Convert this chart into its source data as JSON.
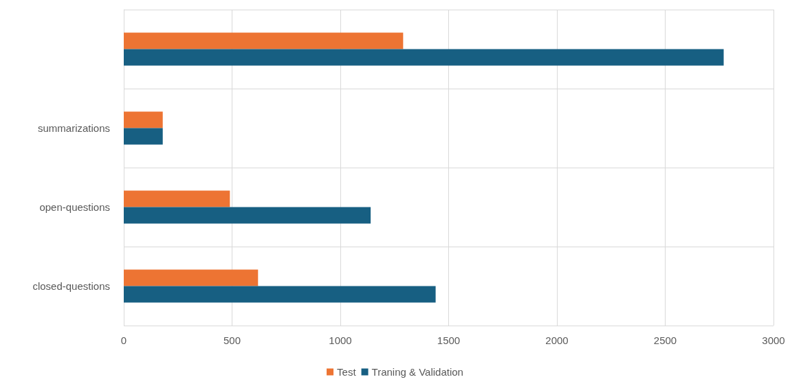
{
  "chart_data": {
    "type": "bar",
    "orientation": "horizontal",
    "categories": [
      null,
      "summarizations",
      "open-questions",
      "closed-questions"
    ],
    "series": [
      {
        "name": "Test",
        "color": "#ed7433",
        "values": [
          1290,
          180,
          490,
          620
        ]
      },
      {
        "name": "Traning & Validation",
        "color": "#175f82",
        "values": [
          2770,
          180,
          1140,
          1440
        ]
      }
    ],
    "xlim": [
      0,
      3000
    ],
    "xticks": [
      0,
      500,
      1000,
      1500,
      2000,
      2500,
      3000
    ],
    "grid": true,
    "legend": "bottom"
  }
}
